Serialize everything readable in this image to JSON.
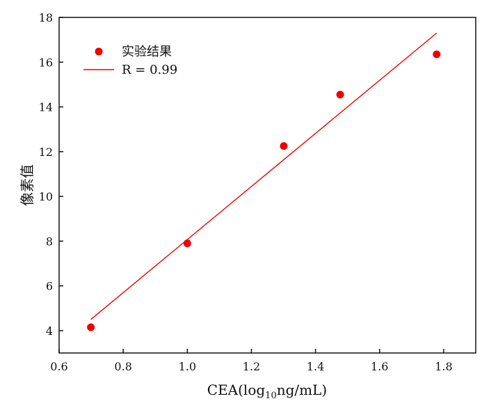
{
  "chart_data": {
    "type": "scatter",
    "xlabel": {
      "prefix": "CEA(log",
      "subscript": "10",
      "suffix": "ng/mL)"
    },
    "ylabel": "像素值",
    "xlim": [
      0.6,
      1.9
    ],
    "ylim": [
      3,
      18
    ],
    "xticks": [
      {
        "value": 0.6,
        "label": "0.6"
      },
      {
        "value": 0.8,
        "label": "0.8"
      },
      {
        "value": 1.0,
        "label": "1.0"
      },
      {
        "value": 1.2,
        "label": "1.2"
      },
      {
        "value": 1.4,
        "label": "1.4"
      },
      {
        "value": 1.6,
        "label": "1.6"
      },
      {
        "value": 1.8,
        "label": "1.8"
      }
    ],
    "yticks": [
      {
        "value": 4,
        "label": "4"
      },
      {
        "value": 6,
        "label": "6"
      },
      {
        "value": 8,
        "label": "8"
      },
      {
        "value": 10,
        "label": "10"
      },
      {
        "value": 12,
        "label": "12"
      },
      {
        "value": 14,
        "label": "14"
      },
      {
        "value": 16,
        "label": "16"
      },
      {
        "value": 18,
        "label": "18"
      }
    ],
    "grid": false,
    "legend_position": "top-left",
    "series": [
      {
        "name": "实验结果",
        "type": "scatter",
        "color": "#ee0000",
        "x": [
          0.699,
          1.0,
          1.301,
          1.477,
          1.778
        ],
        "y": [
          4.15,
          7.9,
          12.25,
          14.55,
          16.35
        ]
      },
      {
        "name": "R = 0.99",
        "type": "line",
        "color": "#ee0000",
        "x": [
          0.699,
          1.778
        ],
        "y": [
          4.5,
          17.3
        ]
      }
    ]
  }
}
